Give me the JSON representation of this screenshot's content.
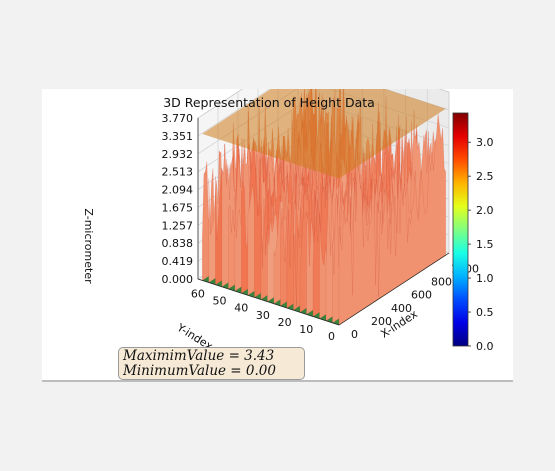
{
  "chart_data": {
    "type": "surface3d",
    "title": "3D Representation of Height Data",
    "xlabel": "X-index",
    "ylabel": "Y-index",
    "zlabel": "Z-micrometer",
    "x_ticks": [
      "0",
      "200",
      "400",
      "600",
      "800",
      "1000"
    ],
    "y_ticks": [
      "0",
      "10",
      "20",
      "30",
      "40",
      "50",
      "60"
    ],
    "z_ticks": [
      "0.000",
      "0.419",
      "0.838",
      "1.257",
      "1.675",
      "2.094",
      "2.513",
      "2.932",
      "3.351",
      "3.770"
    ],
    "xlim": [
      0,
      1100
    ],
    "ylim": [
      0,
      65
    ],
    "zlim": [
      0,
      3.77
    ],
    "colormap": "jet",
    "colorbar_ticks": [
      "0.0",
      "0.5",
      "1.0",
      "1.5",
      "2.0",
      "2.5",
      "3.0"
    ],
    "colorbar_range": [
      0,
      3.43
    ],
    "max_plane_z": 3.43,
    "min_plane_z": 0.0,
    "plane_colors": {
      "max": "#cc7a1c",
      "min": "#2e7d32"
    },
    "grid": true,
    "annotation": {
      "max_text": "MaximimValue = 3.43",
      "min_text": "MinimumValue = 0.00"
    }
  }
}
